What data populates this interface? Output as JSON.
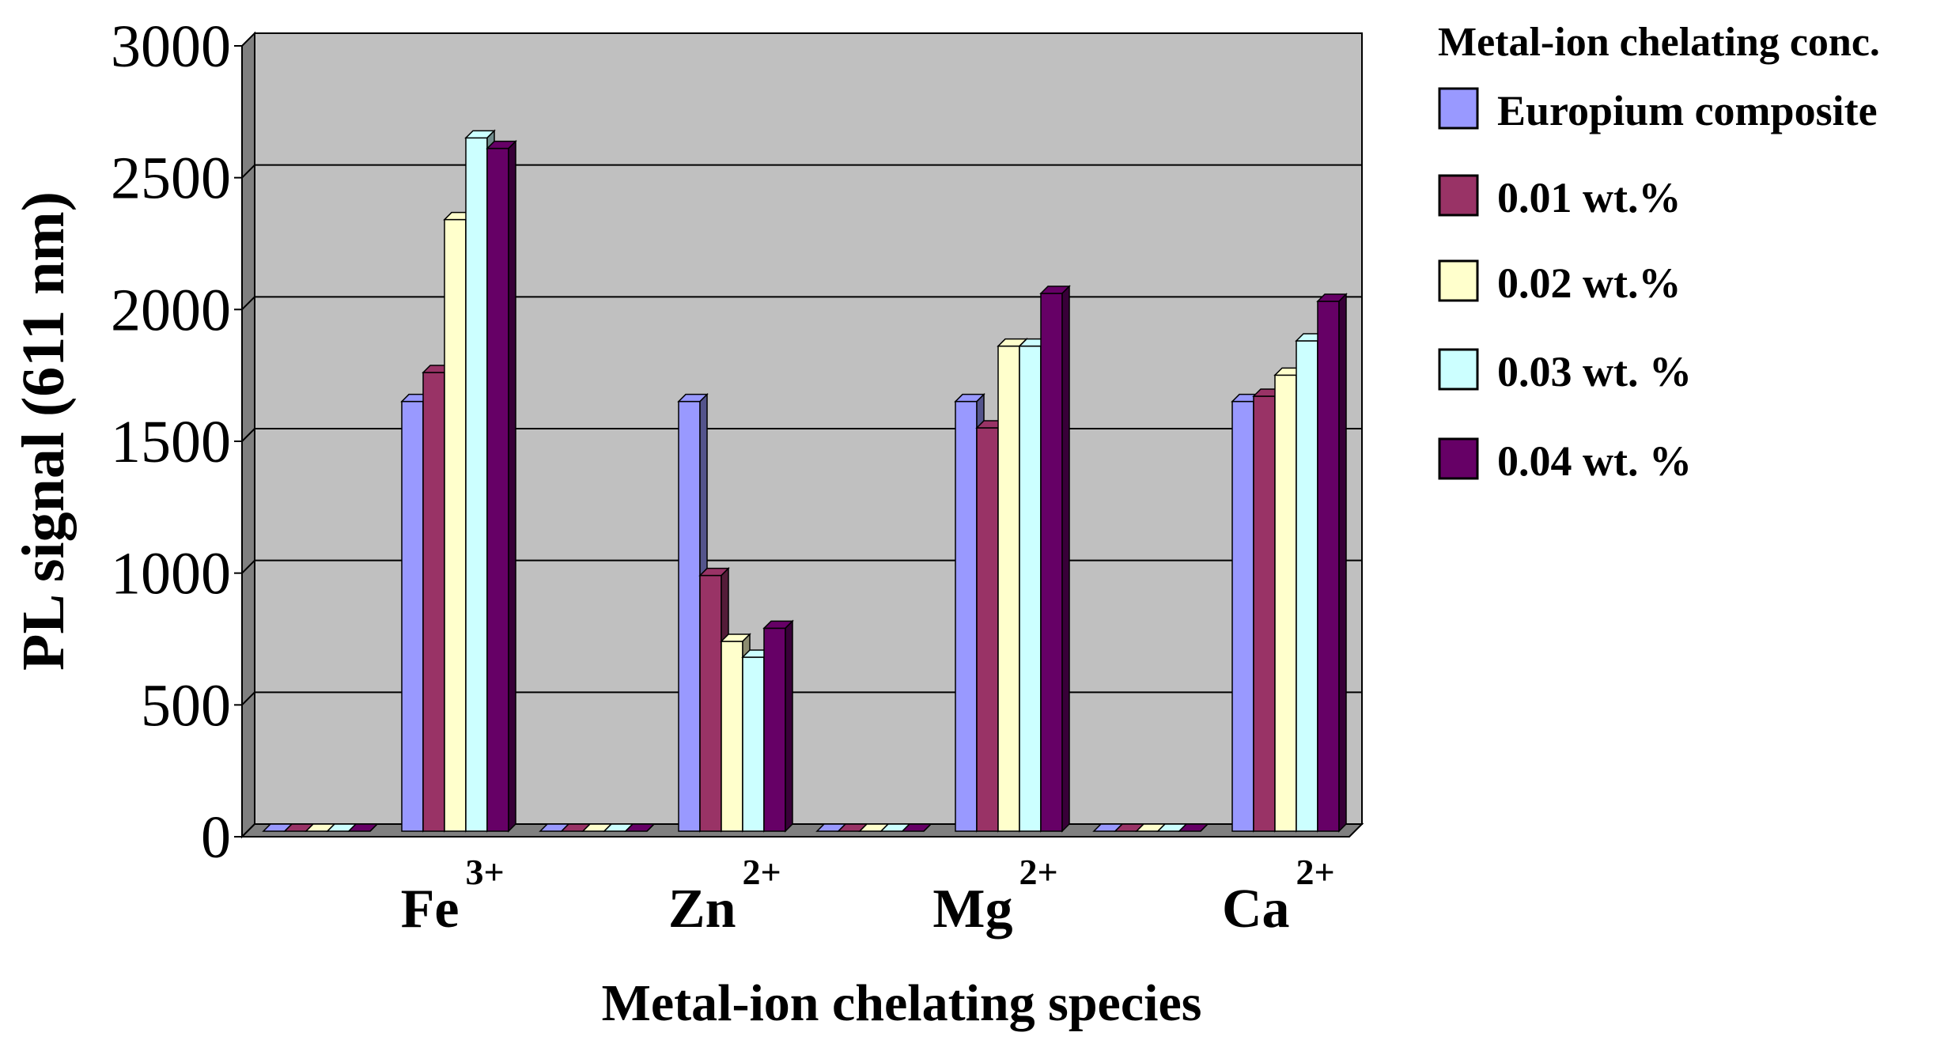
{
  "chart_data": {
    "type": "bar",
    "title": "",
    "xlabel": "Metal-ion chelating species",
    "ylabel": "PL signal (611 nm)",
    "ylim": [
      0,
      3000
    ],
    "yticks": [
      0,
      500,
      1000,
      1500,
      2000,
      2500,
      3000
    ],
    "grid": true,
    "legend_position": "right",
    "legend_title": "Metal-ion chelating conc.",
    "categories": [
      {
        "base": "Fe",
        "sup": "3+"
      },
      {
        "base": "Zn",
        "sup": "2+"
      },
      {
        "base": "Mg",
        "sup": "2+"
      },
      {
        "base": "Ca",
        "sup": "2+"
      }
    ],
    "series": [
      {
        "name": "Europium composite",
        "color": "#9999ff",
        "values": [
          1630,
          1630,
          1630,
          1630
        ]
      },
      {
        "name": "0.01 wt.%",
        "color": "#993366",
        "values": [
          1740,
          970,
          1530,
          1650
        ]
      },
      {
        "name": "0.02 wt.%",
        "color": "#ffffcc",
        "values": [
          2320,
          720,
          1840,
          1730
        ]
      },
      {
        "name": "0.03 wt. %",
        "color": "#ccffff",
        "values": [
          2630,
          660,
          1840,
          1860
        ]
      },
      {
        "name": "0.04 wt. %",
        "color": "#660066",
        "values": [
          2590,
          770,
          2040,
          2010
        ]
      }
    ]
  },
  "colors": {
    "plot_background": "#c0c0c0",
    "wall_shade": "#808080",
    "gridline": "#000000"
  }
}
